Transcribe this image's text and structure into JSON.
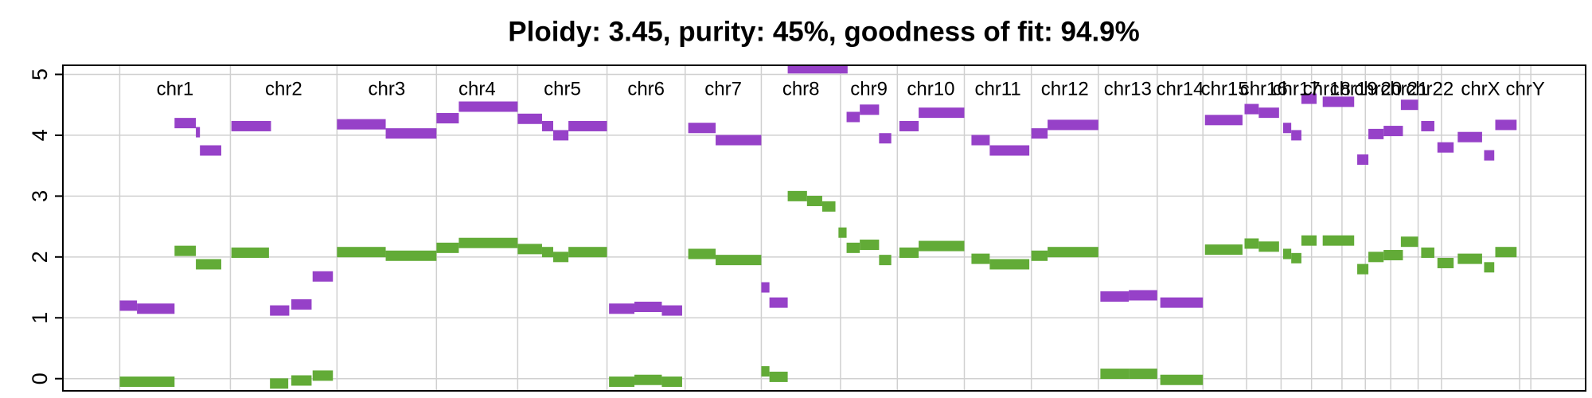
{
  "chart_data": {
    "type": "segments",
    "title": "Ploidy: 3.45, purity: 45%, goodness of fit: 94.9%",
    "categories": [
      "chr1",
      "chr2",
      "chr3",
      "chr4",
      "chr5",
      "chr6",
      "chr7",
      "chr8",
      "chr9",
      "chr10",
      "chr11",
      "chr12",
      "chr13",
      "chr14",
      "chr15",
      "chr16",
      "chr17",
      "chr18",
      "chr19",
      "chr20",
      "chr21",
      "chr22",
      "chrX",
      "chrY"
    ],
    "boundaries": [
      0,
      109,
      214,
      312,
      392,
      480,
      557,
      632,
      710,
      766,
      832,
      898,
      964,
      1022,
      1067,
      1110,
      1144,
      1174,
      1204,
      1227,
      1252,
      1279,
      1302,
      1379,
      1390
    ],
    "xlim": [
      -56,
      1444
    ],
    "ylim": [
      -0.2,
      5.15
    ],
    "yticks": [
      0,
      1,
      2,
      3,
      4,
      5
    ],
    "grid": true,
    "series": [
      {
        "color": "#9641c8",
        "segments": [
          [
            0,
            17,
            1.2
          ],
          [
            17,
            54,
            1.15
          ],
          [
            54,
            75,
            4.2
          ],
          [
            75,
            79,
            4.05
          ],
          [
            79,
            100,
            3.75
          ],
          [
            110,
            149,
            4.15
          ],
          [
            148,
            167,
            1.12
          ],
          [
            169,
            189,
            1.22
          ],
          [
            190,
            210,
            1.68
          ],
          [
            214,
            262,
            4.18
          ],
          [
            262,
            312,
            4.03
          ],
          [
            312,
            334,
            4.28
          ],
          [
            334,
            392,
            4.47
          ],
          [
            392,
            416,
            4.27
          ],
          [
            416,
            427,
            4.15
          ],
          [
            427,
            442,
            4.0
          ],
          [
            442,
            480,
            4.15
          ],
          [
            482,
            507,
            1.15
          ],
          [
            507,
            534,
            1.18
          ],
          [
            534,
            554,
            1.12
          ],
          [
            560,
            587,
            4.12
          ],
          [
            587,
            632,
            3.92
          ],
          [
            632,
            640,
            1.5
          ],
          [
            640,
            658,
            1.25
          ],
          [
            658,
            717,
            5.1
          ],
          [
            716,
            729,
            4.3
          ],
          [
            729,
            748,
            4.42
          ],
          [
            748,
            760,
            3.95
          ],
          [
            768,
            787,
            4.15
          ],
          [
            787,
            832,
            4.37
          ],
          [
            839,
            857,
            3.92
          ],
          [
            857,
            896,
            3.75
          ],
          [
            898,
            914,
            4.03
          ],
          [
            914,
            964,
            4.17
          ],
          [
            966,
            994,
            1.35
          ],
          [
            994,
            1022,
            1.37
          ],
          [
            1025,
            1067,
            1.25
          ],
          [
            1069,
            1106,
            4.25
          ],
          [
            1108,
            1122,
            4.43
          ],
          [
            1122,
            1142,
            4.37
          ],
          [
            1146,
            1154,
            4.12
          ],
          [
            1154,
            1164,
            4.0
          ],
          [
            1164,
            1179,
            4.6
          ],
          [
            1185,
            1216,
            4.55
          ],
          [
            1219,
            1230,
            3.6
          ],
          [
            1230,
            1245,
            4.02
          ],
          [
            1245,
            1264,
            4.07
          ],
          [
            1262,
            1279,
            4.5
          ],
          [
            1282,
            1295,
            4.15
          ],
          [
            1298,
            1314,
            3.8
          ],
          [
            1318,
            1342,
            3.97
          ],
          [
            1344,
            1354,
            3.67
          ],
          [
            1355,
            1376,
            4.17
          ]
        ]
      },
      {
        "color": "#62ab37",
        "segments": [
          [
            0,
            54,
            -0.05
          ],
          [
            54,
            75,
            2.1
          ],
          [
            75,
            100,
            1.88
          ],
          [
            110,
            147,
            2.07
          ],
          [
            148,
            166,
            -0.08
          ],
          [
            169,
            189,
            -0.03
          ],
          [
            190,
            210,
            0.05
          ],
          [
            214,
            262,
            2.08
          ],
          [
            262,
            312,
            2.02
          ],
          [
            312,
            334,
            2.15
          ],
          [
            334,
            392,
            2.23
          ],
          [
            392,
            416,
            2.13
          ],
          [
            416,
            427,
            2.08
          ],
          [
            427,
            442,
            2.0
          ],
          [
            442,
            480,
            2.08
          ],
          [
            482,
            507,
            -0.05
          ],
          [
            507,
            534,
            -0.02
          ],
          [
            534,
            554,
            -0.05
          ],
          [
            560,
            587,
            2.05
          ],
          [
            587,
            632,
            1.95
          ],
          [
            632,
            640,
            0.12
          ],
          [
            640,
            658,
            0.03
          ],
          [
            658,
            677,
            3.0
          ],
          [
            677,
            692,
            2.92
          ],
          [
            692,
            705,
            2.83
          ],
          [
            708,
            716,
            2.4
          ],
          [
            716,
            729,
            2.15
          ],
          [
            729,
            748,
            2.2
          ],
          [
            748,
            760,
            1.95
          ],
          [
            768,
            787,
            2.07
          ],
          [
            787,
            832,
            2.18
          ],
          [
            839,
            857,
            1.97
          ],
          [
            857,
            896,
            1.88
          ],
          [
            898,
            914,
            2.02
          ],
          [
            914,
            964,
            2.08
          ],
          [
            966,
            994,
            0.08
          ],
          [
            994,
            1022,
            0.08
          ],
          [
            1025,
            1067,
            -0.02
          ],
          [
            1069,
            1106,
            2.12
          ],
          [
            1108,
            1122,
            2.22
          ],
          [
            1122,
            1142,
            2.17
          ],
          [
            1146,
            1154,
            2.05
          ],
          [
            1154,
            1164,
            1.98
          ],
          [
            1164,
            1179,
            2.27
          ],
          [
            1185,
            1216,
            2.27
          ],
          [
            1219,
            1230,
            1.8
          ],
          [
            1230,
            1245,
            2.0
          ],
          [
            1245,
            1264,
            2.03
          ],
          [
            1262,
            1279,
            2.25
          ],
          [
            1282,
            1295,
            2.07
          ],
          [
            1298,
            1314,
            1.9
          ],
          [
            1318,
            1342,
            1.97
          ],
          [
            1344,
            1354,
            1.83
          ],
          [
            1355,
            1376,
            2.08
          ]
        ]
      }
    ]
  }
}
